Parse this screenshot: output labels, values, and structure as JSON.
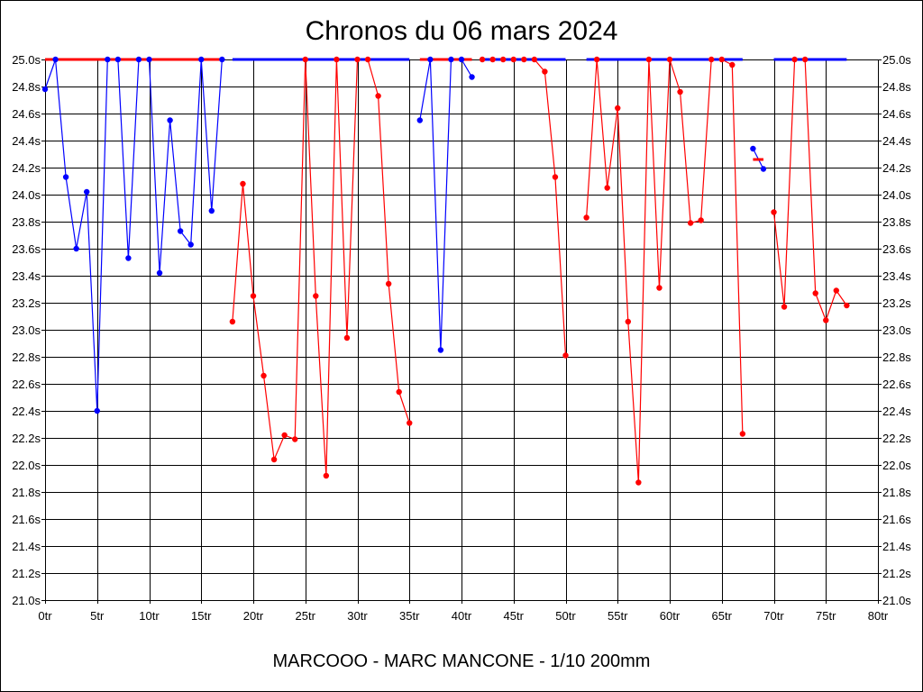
{
  "chart_data": {
    "type": "line",
    "title": "Chronos du 06 mars 2024",
    "caption": "MARCOOO - MARC MANCONE - 1/10 200mm",
    "xlim": [
      0,
      80
    ],
    "ylim": [
      21.0,
      25.0
    ],
    "grid": true,
    "x_ticks": [
      {
        "value": 0,
        "label": "0tr"
      },
      {
        "value": 5,
        "label": "5tr"
      },
      {
        "value": 10,
        "label": "10tr"
      },
      {
        "value": 15,
        "label": "15tr"
      },
      {
        "value": 20,
        "label": "20tr"
      },
      {
        "value": 25,
        "label": "25tr"
      },
      {
        "value": 30,
        "label": "30tr"
      },
      {
        "value": 35,
        "label": "35tr"
      },
      {
        "value": 40,
        "label": "40tr"
      },
      {
        "value": 45,
        "label": "45tr"
      },
      {
        "value": 50,
        "label": "50tr"
      },
      {
        "value": 55,
        "label": "55tr"
      },
      {
        "value": 60,
        "label": "60tr"
      },
      {
        "value": 65,
        "label": "65tr"
      },
      {
        "value": 70,
        "label": "70tr"
      },
      {
        "value": 75,
        "label": "75tr"
      },
      {
        "value": 80,
        "label": "80tr"
      }
    ],
    "y_ticks": [
      {
        "value": 25.0,
        "label": "25.0s"
      },
      {
        "value": 24.8,
        "label": "24.8s"
      },
      {
        "value": 24.6,
        "label": "24.6s"
      },
      {
        "value": 24.4,
        "label": "24.4s"
      },
      {
        "value": 24.2,
        "label": "24.2s"
      },
      {
        "value": 24.0,
        "label": "24.0s"
      },
      {
        "value": 23.8,
        "label": "23.8s"
      },
      {
        "value": 23.6,
        "label": "23.6s"
      },
      {
        "value": 23.4,
        "label": "23.4s"
      },
      {
        "value": 23.2,
        "label": "23.2s"
      },
      {
        "value": 23.0,
        "label": "23.0s"
      },
      {
        "value": 22.8,
        "label": "22.8s"
      },
      {
        "value": 22.6,
        "label": "22.6s"
      },
      {
        "value": 22.4,
        "label": "22.4s"
      },
      {
        "value": 22.2,
        "label": "22.2s"
      },
      {
        "value": 22.0,
        "label": "22.0s"
      },
      {
        "value": 21.8,
        "label": "21.8s"
      },
      {
        "value": 21.6,
        "label": "21.6s"
      },
      {
        "value": 21.4,
        "label": "21.4s"
      },
      {
        "value": 21.2,
        "label": "21.2s"
      },
      {
        "value": 21.0,
        "label": "21.0s"
      }
    ],
    "series": [
      {
        "color": "#0000ff",
        "hline_color": "#ff0000",
        "hline": 25.0,
        "x": [
          0,
          1,
          2,
          3,
          4,
          5,
          6,
          7,
          8,
          9,
          10,
          11,
          12,
          13,
          14,
          15,
          16,
          17
        ],
        "y": [
          24.78,
          25.0,
          24.13,
          23.6,
          24.02,
          22.4,
          25.0,
          25.0,
          23.53,
          25.0,
          25.0,
          23.42,
          24.55,
          23.73,
          23.63,
          25.0,
          23.88,
          25.0
        ]
      },
      {
        "color": "#ff0000",
        "hline_color": "#0000ff",
        "hline": 25.0,
        "x": [
          18,
          19,
          20,
          21,
          22,
          23,
          24,
          25,
          26,
          27,
          28,
          29,
          30,
          31,
          32,
          33,
          34,
          35
        ],
        "y": [
          23.06,
          24.08,
          23.25,
          22.66,
          22.04,
          22.22,
          22.19,
          25.0,
          23.25,
          21.92,
          25.0,
          22.94,
          25.0,
          25.0,
          24.73,
          23.34,
          22.54,
          22.31
        ]
      },
      {
        "color": "#0000ff",
        "hline_color": "#ff0000",
        "hline": 25.0,
        "x": [
          36,
          37,
          38,
          39,
          40,
          41
        ],
        "y": [
          24.55,
          25.0,
          22.85,
          25.0,
          25.0,
          24.87
        ]
      },
      {
        "color": "#ff0000",
        "hline_color": "#0000ff",
        "hline": 25.0,
        "x": [
          42,
          43,
          44,
          45,
          46,
          47,
          48,
          49,
          50
        ],
        "y": [
          25.0,
          25.0,
          25.0,
          25.0,
          25.0,
          25.0,
          24.91,
          24.13,
          22.81
        ]
      },
      {
        "color": "#ff0000",
        "hline_color": "#0000ff",
        "hline": 25.0,
        "x": [
          52,
          53,
          54,
          55,
          56,
          57,
          58,
          59,
          60,
          61,
          62,
          63,
          64,
          65,
          66,
          67
        ],
        "y": [
          23.83,
          25.0,
          24.05,
          24.64,
          23.06,
          21.87,
          25.0,
          23.31,
          25.0,
          24.76,
          23.79,
          23.81,
          25.0,
          25.0,
          24.96,
          22.23
        ]
      },
      {
        "color": "#0000ff",
        "hline_color": "#ff0000",
        "hline": 24.26,
        "x": [
          68,
          69
        ],
        "y": [
          24.34,
          24.19
        ]
      },
      {
        "color": "#ff0000",
        "hline_color": "#0000ff",
        "hline": 25.0,
        "x": [
          70,
          71,
          72,
          73,
          74,
          75,
          76,
          77
        ],
        "y": [
          23.87,
          23.17,
          25.0,
          25.0,
          23.27,
          23.07,
          23.29,
          23.18
        ]
      }
    ]
  }
}
